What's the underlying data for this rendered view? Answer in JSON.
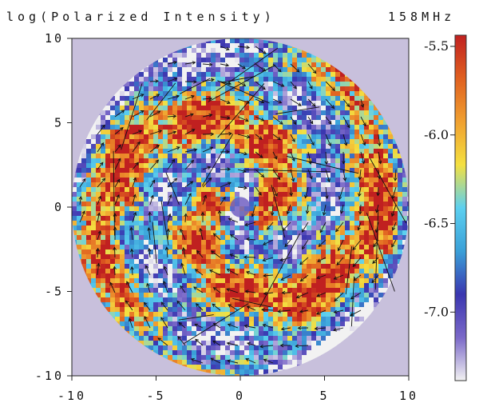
{
  "figure": {
    "title": "log(Polarized Intensity)",
    "frequency_label": "158MHz"
  },
  "chart_data": {
    "type": "heatmap",
    "title": "log(Polarized Intensity)",
    "annotation": "158MHz",
    "xlim": [
      -10,
      10
    ],
    "ylim": [
      -10,
      10
    ],
    "x_ticks": [
      -10,
      -5,
      0,
      5,
      10
    ],
    "y_ticks": [
      -10,
      -5,
      0,
      5,
      10
    ],
    "x_tick_labels": [
      "-10",
      "-5",
      "0",
      "5",
      "10"
    ],
    "y_tick_labels": [
      "-10",
      "-5",
      "0",
      "5",
      "10"
    ],
    "disk_radius": 10,
    "grid": false,
    "overlay": "polarization vectors (black arrows)",
    "colorbar": {
      "range": [
        -7.45,
        -5.5
      ],
      "ticks": [
        -5.5,
        -6.0,
        -6.5,
        -7.0
      ],
      "tick_labels": [
        "-5.5",
        "-6.0",
        "-6.5",
        "-7.0"
      ],
      "colors": [
        "#f2f2f2",
        "#7a68c8",
        "#3a36b0",
        "#3aa0d8",
        "#5cd0f0",
        "#f4e040",
        "#f0a030",
        "#e06020",
        "#c02020"
      ],
      "placement": "right"
    },
    "background_color": "#c8c0dc"
  }
}
